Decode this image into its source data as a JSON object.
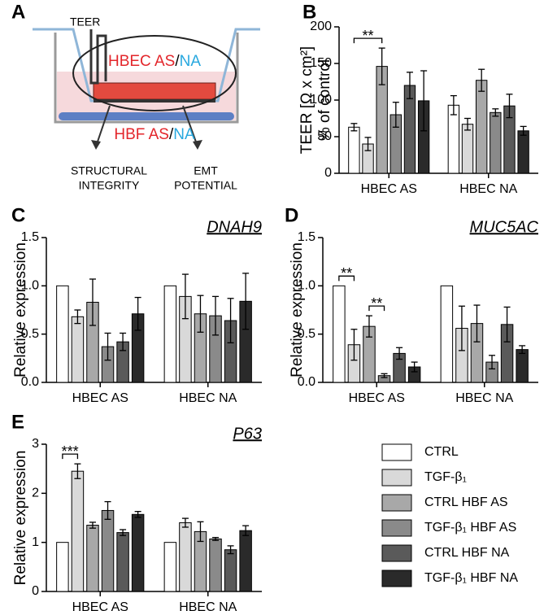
{
  "diagram": {
    "label": "A",
    "teer": "TEER",
    "top": [
      "HBEC AS",
      "/",
      "NA"
    ],
    "bottom": [
      "HBF AS",
      "/",
      "NA"
    ],
    "left": [
      "STRUCTURAL",
      "INTEGRITY"
    ],
    "right": [
      "EMT",
      "POTENTIAL"
    ]
  },
  "legend": [
    {
      "name": "CTRL",
      "color": "#ffffff"
    },
    {
      "name": "TGF-β₁",
      "color": "#d9d9d9"
    },
    {
      "name": "CTRL HBF AS",
      "color": "#a8a8a8"
    },
    {
      "name": "TGF-β₁ HBF AS",
      "color": "#8a8a8a"
    },
    {
      "name": "CTRL HBF NA",
      "color": "#5a5a5a"
    },
    {
      "name": "TGF-β₁ HBF NA",
      "color": "#2a2a2a"
    }
  ],
  "category_colors": [
    "#e3262b",
    "#28a8df"
  ],
  "chart_data": [
    {
      "type": "bar",
      "label": "B",
      "ylabel": [
        "TEER [Ω x cm²]",
        "% of control"
      ],
      "categories": [
        "HBEC AS",
        "HBEC NA"
      ],
      "ylim": [
        0,
        200
      ],
      "yticks": [
        0,
        50,
        100,
        150,
        200
      ],
      "series": [
        {
          "values": [
            63,
            93
          ],
          "errors": [
            5,
            13
          ]
        },
        {
          "values": [
            40,
            67
          ],
          "errors": [
            9,
            8
          ]
        },
        {
          "values": [
            146,
            127
          ],
          "errors": [
            25,
            15
          ]
        },
        {
          "values": [
            80,
            83
          ],
          "errors": [
            17,
            5
          ]
        },
        {
          "values": [
            120,
            92
          ],
          "errors": [
            18,
            16
          ]
        },
        {
          "values": [
            99,
            58
          ],
          "errors": [
            41,
            6
          ]
        }
      ],
      "annotations": [
        {
          "text": "**",
          "category": 0,
          "series": [
            0,
            2
          ]
        }
      ]
    },
    {
      "type": "bar",
      "label": "C",
      "title": "DNAH9",
      "ylabel": [
        "Relative expression"
      ],
      "categories": [
        "HBEC AS",
        "HBEC NA"
      ],
      "ylim": [
        0,
        1.5
      ],
      "yticks": [
        {
          "value": 0,
          "label": "0.0"
        },
        0.5,
        {
          "value": 1,
          "label": "1.0"
        },
        1.5
      ],
      "series": [
        {
          "values": [
            1.0,
            1.0
          ],
          "errors": [
            null,
            null
          ]
        },
        {
          "values": [
            0.68,
            0.89
          ],
          "errors": [
            0.07,
            0.23
          ]
        },
        {
          "values": [
            0.83,
            0.71
          ],
          "errors": [
            0.24,
            0.19
          ]
        },
        {
          "values": [
            0.37,
            0.69
          ],
          "errors": [
            0.14,
            0.2
          ]
        },
        {
          "values": [
            0.42,
            0.64
          ],
          "errors": [
            0.09,
            0.23
          ]
        },
        {
          "values": [
            0.71,
            0.84
          ],
          "errors": [
            0.17,
            0.29
          ]
        }
      ],
      "annotations": []
    },
    {
      "type": "bar",
      "label": "D",
      "title": "MUC5AC",
      "ylabel": [
        "Relative expression"
      ],
      "categories": [
        "HBEC AS",
        "HBEC NA"
      ],
      "ylim": [
        0,
        1.5
      ],
      "yticks": [
        {
          "value": 0,
          "label": "0.0"
        },
        0.5,
        {
          "value": 1,
          "label": "1.0"
        },
        1.5
      ],
      "series": [
        {
          "values": [
            1.0,
            1.0
          ],
          "errors": [
            null,
            null
          ]
        },
        {
          "values": [
            0.39,
            0.56
          ],
          "errors": [
            0.16,
            0.23
          ]
        },
        {
          "values": [
            0.58,
            0.61
          ],
          "errors": [
            0.11,
            0.19
          ]
        },
        {
          "values": [
            0.07,
            0.21
          ],
          "errors": [
            0.02,
            0.07
          ]
        },
        {
          "values": [
            0.3,
            0.6
          ],
          "errors": [
            0.06,
            0.18
          ]
        },
        {
          "values": [
            0.16,
            0.34
          ],
          "errors": [
            0.05,
            0.04
          ]
        }
      ],
      "annotations": [
        {
          "text": "**",
          "category": 0,
          "series": [
            0,
            1
          ]
        },
        {
          "text": "**",
          "category": 0,
          "series": [
            2,
            3
          ]
        }
      ]
    },
    {
      "type": "bar",
      "label": "E",
      "title": "P63",
      "ylabel": [
        "Relative expression"
      ],
      "categories": [
        "HBEC AS",
        "HBEC NA"
      ],
      "ylim": [
        0,
        3
      ],
      "yticks": [
        0,
        1,
        2,
        3
      ],
      "series": [
        {
          "values": [
            1.0,
            1.0
          ],
          "errors": [
            null,
            null
          ]
        },
        {
          "values": [
            2.45,
            1.4
          ],
          "errors": [
            0.15,
            0.09
          ]
        },
        {
          "values": [
            1.35,
            1.22
          ],
          "errors": [
            0.06,
            0.2
          ]
        },
        {
          "values": [
            1.65,
            1.07
          ],
          "errors": [
            0.18,
            0.03
          ]
        },
        {
          "values": [
            1.2,
            0.85
          ],
          "errors": [
            0.06,
            0.08
          ]
        },
        {
          "values": [
            1.57,
            1.24
          ],
          "errors": [
            0.06,
            0.1
          ]
        }
      ],
      "annotations": [
        {
          "text": "***",
          "category": 0,
          "series": [
            0,
            1
          ]
        }
      ]
    }
  ]
}
